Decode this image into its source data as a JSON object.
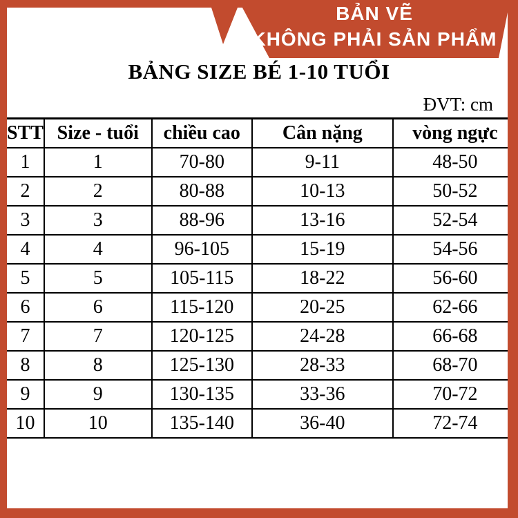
{
  "colors": {
    "accent": "#c24b2e",
    "banner_text": "#ffffff",
    "table_border": "#000000",
    "text": "#000000"
  },
  "banner": {
    "line1": "BẢN VẼ",
    "line2": "KHÔNG PHẢI SẢN PHẨM"
  },
  "title": "BẢNG SIZE BÉ 1-10 TUỔI",
  "unit_label": "ĐVT: cm",
  "table": {
    "columns": [
      "STT",
      "Size - tuổi",
      "chiều cao",
      "Cân nặng",
      "vòng ngực"
    ],
    "rows": [
      [
        "1",
        "1",
        "70-80",
        "9-11",
        "48-50"
      ],
      [
        "2",
        "2",
        "80-88",
        "10-13",
        "50-52"
      ],
      [
        "3",
        "3",
        "88-96",
        "13-16",
        "52-54"
      ],
      [
        "4",
        "4",
        "96-105",
        "15-19",
        "54-56"
      ],
      [
        "5",
        "5",
        "105-115",
        "18-22",
        "56-60"
      ],
      [
        "6",
        "6",
        "115-120",
        "20-25",
        "62-66"
      ],
      [
        "7",
        "7",
        "120-125",
        "24-28",
        "66-68"
      ],
      [
        "8",
        "8",
        "125-130",
        "28-33",
        "68-70"
      ],
      [
        "9",
        "9",
        "130-135",
        "33-36",
        "70-72"
      ],
      [
        "10",
        "10",
        "135-140",
        "36-40",
        "72-74"
      ]
    ]
  }
}
